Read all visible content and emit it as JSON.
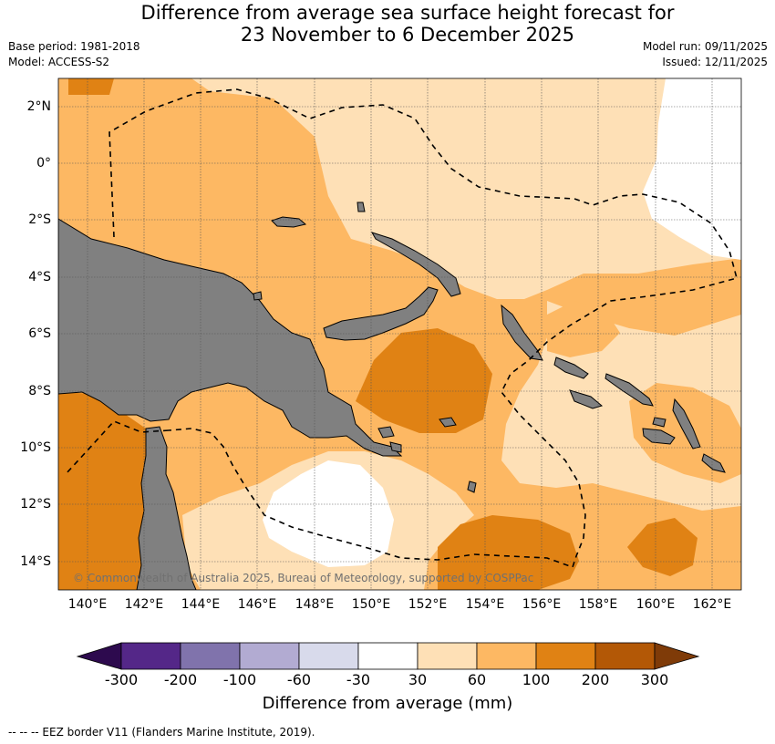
{
  "title_line1": "Difference from average sea surface height forecast for",
  "title_line2": "23 November to 6 December 2025",
  "base_period": "Base period: 1981-2018",
  "model": "Model: ACCESS-S2",
  "model_run": "Model run: 09/11/2025",
  "issued": "Issued: 12/11/2025",
  "copyright": "© Commonwealth of Australia 2025, Bureau of Meteorology, supported by COSPPac",
  "lat_labels": [
    "2°N",
    "0°",
    "2°S",
    "4°S",
    "6°S",
    "8°S",
    "10°S",
    "12°S",
    "14°S"
  ],
  "lon_labels": [
    "140°E",
    "142°E",
    "144°E",
    "146°E",
    "148°E",
    "150°E",
    "152°E",
    "154°E",
    "156°E",
    "158°E",
    "160°E",
    "162°E"
  ],
  "colorbar": {
    "title": "Difference from average (mm)",
    "tick_labels": [
      "-300",
      "-200",
      "-100",
      "-60",
      "-30",
      "30",
      "60",
      "100",
      "200",
      "300"
    ],
    "colors": {
      "below_-300": "#2d0a4e",
      "-300_-200": "#542788",
      "-200_-100": "#8073ac",
      "-100_-60": "#b2abd2",
      "-60_-30": "#d8daeb",
      "-30_30": "#ffffff",
      "30_60": "#fee0b6",
      "60_100": "#fdb863",
      "100_200": "#e08214",
      "200_300": "#b35806",
      "above_300": "#7f3b08"
    }
  },
  "land_color": "#808080",
  "footer": "--  --  -- EEZ border V11 (Flanders Marine Institute, 2019)."
}
